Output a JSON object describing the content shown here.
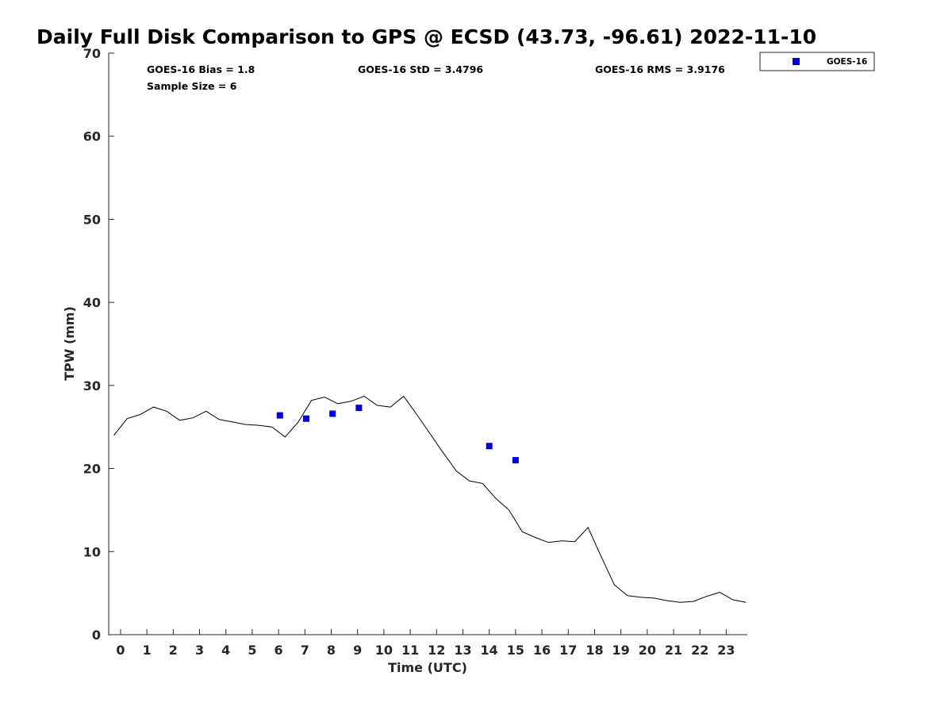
{
  "chart_data": {
    "type": "scatter",
    "title": "Daily Full Disk Comparison to GPS @ ECSD (43.73, -96.61) 2022-11-10",
    "xlabel": "Time (UTC)",
    "ylabel": "TPW (mm)",
    "xlim": [
      -0.45,
      23.8
    ],
    "ylim": [
      0,
      70
    ],
    "x_ticks": [
      "0",
      "1",
      "2",
      "3",
      "4",
      "5",
      "6",
      "7",
      "8",
      "9",
      "10",
      "11",
      "12",
      "13",
      "14",
      "15",
      "16",
      "17",
      "18",
      "19",
      "20",
      "21",
      "22",
      "23"
    ],
    "y_ticks": [
      "0",
      "10",
      "20",
      "30",
      "40",
      "50",
      "60",
      "70"
    ],
    "grid": false,
    "legend_position": "top-right",
    "stats": {
      "bias": "GOES-16 Bias = 1.8",
      "std": "GOES-16 StD = 3.4796",
      "rms": "GOES-16 RMS = 3.9176",
      "sample": "Sample Size = 6"
    },
    "series": [
      {
        "type": "line",
        "color": "#000000",
        "x": [
          -0.25,
          0.25,
          0.75,
          1.25,
          1.75,
          2.25,
          2.75,
          3.25,
          3.75,
          4.25,
          4.75,
          5.25,
          5.75,
          6.25,
          6.75,
          7.25,
          7.75,
          8.25,
          8.75,
          9.25,
          9.75,
          10.25,
          10.75,
          11.25,
          11.75,
          12.25,
          12.75,
          13.25,
          13.75,
          14.25,
          14.75,
          15.25,
          15.75,
          16.25,
          16.75,
          17.25,
          17.75,
          18.25,
          18.75,
          19.25,
          19.75,
          20.25,
          20.75,
          21.25,
          21.75,
          22.25,
          22.75,
          23.25,
          23.75
        ],
        "values": [
          24.0,
          26.0,
          26.5,
          27.4,
          26.9,
          25.8,
          26.1,
          26.9,
          25.9,
          25.6,
          25.3,
          25.2,
          25.0,
          23.8,
          25.6,
          28.2,
          28.6,
          27.8,
          28.1,
          28.7,
          27.6,
          27.4,
          28.7,
          26.5,
          24.2,
          21.9,
          19.7,
          18.5,
          18.2,
          16.4,
          15.0,
          12.4,
          11.7,
          11.1,
          11.3,
          11.2,
          12.9,
          9.4,
          6.0,
          4.7,
          4.5,
          4.4,
          4.1,
          3.9,
          4.0,
          4.6,
          5.1,
          4.2,
          3.9
        ]
      },
      {
        "name": "GOES-16",
        "type": "scatter",
        "color": "#0000dd",
        "x": [
          6.05,
          7.05,
          8.05,
          9.05,
          14.0,
          15.0
        ],
        "values": [
          26.4,
          26.0,
          26.6,
          27.3,
          22.7,
          21.0
        ]
      }
    ]
  }
}
